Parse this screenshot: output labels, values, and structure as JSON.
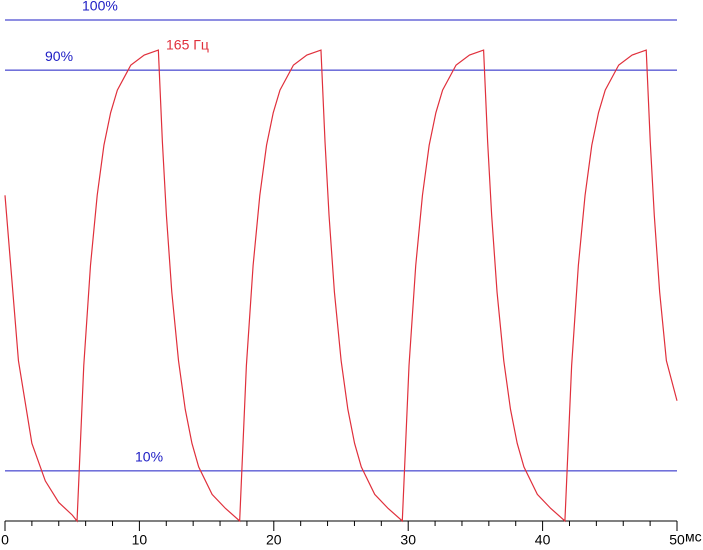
{
  "chart_data": {
    "type": "line",
    "x_label": "мс",
    "annotation": "165 Гц",
    "xlim": [
      0,
      50
    ],
    "xticks": [
      0,
      10,
      20,
      30,
      40,
      50
    ],
    "ylim": [
      0,
      100
    ],
    "yticks": [
      {
        "value": 10,
        "label": "10%"
      },
      {
        "value": 90,
        "label": "90%"
      },
      {
        "value": 100,
        "label": "100%"
      }
    ],
    "grid": true,
    "grid_color": "#1c1cc4",
    "series": [
      {
        "color": "#e0303c",
        "x": [
          0,
          1,
          2,
          3,
          4,
          5,
          5.36,
          5.86,
          6.36,
          6.86,
          7.36,
          7.86,
          8.36,
          9.36,
          10.36,
          11.41,
          11.71,
          12.01,
          12.41,
          12.91,
          13.41,
          13.91,
          14.41,
          15.41,
          16.41,
          17.46,
          17.96,
          18.46,
          18.96,
          19.46,
          19.96,
          20.46,
          21.46,
          22.46,
          23.51,
          23.81,
          24.11,
          24.51,
          25.01,
          25.51,
          26.01,
          26.51,
          27.51,
          28.51,
          29.56,
          30.06,
          30.56,
          31.06,
          31.56,
          32.06,
          32.56,
          33.56,
          34.56,
          35.61,
          35.91,
          36.21,
          36.61,
          37.11,
          37.61,
          38.11,
          38.61,
          39.61,
          40.61,
          41.66,
          42.16,
          42.66,
          43.16,
          43.66,
          44.16,
          44.66,
          45.66,
          46.66,
          47.71,
          48.01,
          48.31,
          48.71,
          49.21,
          50
        ],
        "values": [
          65,
          32,
          15.5,
          8,
          3.7,
          1.2,
          0,
          31,
          51,
          65,
          75,
          81.5,
          86,
          91,
          93,
          94,
          75.7,
          61,
          45.7,
          32,
          22.3,
          15.5,
          10.8,
          5.3,
          2.5,
          0,
          31,
          51,
          65,
          75,
          81.5,
          86,
          91,
          93,
          94,
          75.7,
          61,
          45.7,
          32,
          22.3,
          15.5,
          10.8,
          5.3,
          2.5,
          0,
          31,
          51,
          65,
          75,
          81.5,
          86,
          91,
          93,
          94,
          75.7,
          61,
          45.7,
          32,
          22.3,
          15.5,
          10.8,
          5.3,
          2.5,
          0,
          31,
          51,
          65,
          75,
          81.5,
          86,
          91,
          93,
          94,
          75.7,
          61,
          45.7,
          32,
          24
        ]
      }
    ]
  }
}
